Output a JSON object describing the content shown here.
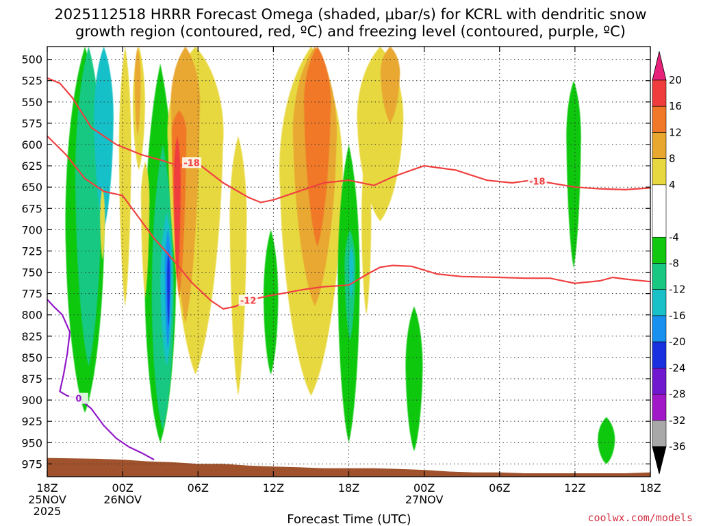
{
  "chart_data": {
    "type": "heatmap",
    "title_lines": [
      "2025112518 HRRR Forecast Omega (shaded, μbar/s) for KCRL with dendritic snow",
      "growth region (contoured, red, ºC) and freezing level (contoured, purple, ºC)"
    ],
    "xlabel": "Forecast Time (UTC)",
    "credit": "coolwx.com/models",
    "x_range": [
      0,
      48
    ],
    "y_range": [
      485,
      990
    ],
    "x_ticks": [
      {
        "x": 0,
        "lines": [
          "18Z",
          "25NOV",
          "2025"
        ]
      },
      {
        "x": 6,
        "lines": [
          "00Z",
          "26NOV"
        ]
      },
      {
        "x": 12,
        "lines": [
          "06Z"
        ]
      },
      {
        "x": 18,
        "lines": [
          "12Z"
        ]
      },
      {
        "x": 24,
        "lines": [
          "18Z"
        ]
      },
      {
        "x": 30,
        "lines": [
          "00Z",
          "27NOV"
        ]
      },
      {
        "x": 36,
        "lines": [
          "06Z"
        ]
      },
      {
        "x": 42,
        "lines": [
          "12Z"
        ]
      },
      {
        "x": 48,
        "lines": [
          "18Z"
        ]
      }
    ],
    "y_ticks": [
      "500",
      "525",
      "550",
      "575",
      "600",
      "625",
      "650",
      "675",
      "700",
      "725",
      "750",
      "775",
      "800",
      "825",
      "850",
      "875",
      "900",
      "925",
      "950",
      "975"
    ],
    "colorbar": {
      "labels": [
        "20",
        "16",
        "12",
        "8",
        "4",
        "-4",
        "-8",
        "-12",
        "-16",
        "-20",
        "-24",
        "-28",
        "-32",
        "-36"
      ],
      "levels": [
        {
          "from": 20,
          "to": 24,
          "color": "#e8227a"
        },
        {
          "from": 16,
          "to": 20,
          "color": "#f03c3c"
        },
        {
          "from": 12,
          "to": 16,
          "color": "#f07828"
        },
        {
          "from": 8,
          "to": 12,
          "color": "#e8a830"
        },
        {
          "from": 4,
          "to": 8,
          "color": "#e8d840"
        },
        {
          "from": -4,
          "to": 4,
          "color": "#ffffff"
        },
        {
          "from": -8,
          "to": -4,
          "color": "#10c810"
        },
        {
          "from": -12,
          "to": -8,
          "color": "#18c882"
        },
        {
          "from": -16,
          "to": -12,
          "color": "#18c0c8"
        },
        {
          "from": -20,
          "to": -16,
          "color": "#1890f0"
        },
        {
          "from": -24,
          "to": -20,
          "color": "#1830e0"
        },
        {
          "from": -28,
          "to": -24,
          "color": "#7018d0"
        },
        {
          "from": -32,
          "to": -28,
          "color": "#a018c8"
        },
        {
          "from": -36,
          "to": -32,
          "color": "#a8a8a8"
        },
        {
          "from": -40,
          "to": -36,
          "color": "#000000"
        }
      ]
    },
    "omega_features": [
      {
        "value": -6,
        "x": 3.0,
        "y": 720,
        "half_width": 1.6,
        "y_top": 485,
        "y_bottom": 915
      },
      {
        "value": -10,
        "x": 3.3,
        "y": 660,
        "half_width": 1.1,
        "y_top": 485,
        "y_bottom": 860
      },
      {
        "value": -14,
        "x": 4.5,
        "y": 580,
        "half_width": 0.8,
        "y_top": 485,
        "y_bottom": 700
      },
      {
        "value": 6,
        "x": 6.2,
        "y": 620,
        "half_width": 0.5,
        "y_top": 485,
        "y_bottom": 790
      },
      {
        "value": 6,
        "x": 4.4,
        "y": 690,
        "half_width": 0.2,
        "y_top": 650,
        "y_bottom": 735
      },
      {
        "value": -6,
        "x": 9.0,
        "y": 775,
        "half_width": 1.3,
        "y_top": 505,
        "y_bottom": 950
      },
      {
        "value": -10,
        "x": 9.2,
        "y": 800,
        "half_width": 0.9,
        "y_top": 600,
        "y_bottom": 935
      },
      {
        "value": -14,
        "x": 9.5,
        "y": 770,
        "half_width": 0.5,
        "y_top": 680,
        "y_bottom": 860
      },
      {
        "value": -18,
        "x": 9.6,
        "y": 755,
        "half_width": 0.25,
        "y_top": 700,
        "y_bottom": 840
      },
      {
        "value": -22,
        "x": 9.65,
        "y": 760,
        "half_width": 0.12,
        "y_top": 725,
        "y_bottom": 815
      },
      {
        "value": 6,
        "x": 11.8,
        "y": 600,
        "half_width": 2.3,
        "y_top": 485,
        "y_bottom": 870
      },
      {
        "value": 10,
        "x": 11.0,
        "y": 560,
        "half_width": 1.2,
        "y_top": 485,
        "y_bottom": 810
      },
      {
        "value": 14,
        "x": 10.5,
        "y": 590,
        "half_width": 0.6,
        "y_top": 560,
        "y_bottom": 780
      },
      {
        "value": 18,
        "x": 10.35,
        "y": 650,
        "half_width": 0.28,
        "y_top": 590,
        "y_bottom": 760
      },
      {
        "value": 6,
        "x": 7.3,
        "y": 560,
        "half_width": 0.5,
        "y_top": 485,
        "y_bottom": 630
      },
      {
        "value": 10,
        "x": 7.2,
        "y": 530,
        "half_width": 0.25,
        "y_top": 485,
        "y_bottom": 590
      },
      {
        "value": 6,
        "x": 7.8,
        "y": 670,
        "half_width": 0.35,
        "y_top": 620,
        "y_bottom": 780
      },
      {
        "value": 6,
        "x": 15.2,
        "y": 700,
        "half_width": 0.7,
        "y_top": 590,
        "y_bottom": 895
      },
      {
        "value": -6,
        "x": 17.8,
        "y": 790,
        "half_width": 0.6,
        "y_top": 700,
        "y_bottom": 870
      },
      {
        "value": 6,
        "x": 21.0,
        "y": 650,
        "half_width": 2.6,
        "y_top": 485,
        "y_bottom": 895
      },
      {
        "value": 10,
        "x": 21.3,
        "y": 600,
        "half_width": 1.8,
        "y_top": 485,
        "y_bottom": 790
      },
      {
        "value": 14,
        "x": 21.5,
        "y": 560,
        "half_width": 1.1,
        "y_top": 485,
        "y_bottom": 720
      },
      {
        "value": -6,
        "x": 24.0,
        "y": 780,
        "half_width": 0.9,
        "y_top": 600,
        "y_bottom": 950
      },
      {
        "value": -10,
        "x": 24.1,
        "y": 750,
        "half_width": 0.45,
        "y_top": 700,
        "y_bottom": 830
      },
      {
        "value": -14,
        "x": 24.2,
        "y": 745,
        "half_width": 0.2,
        "y_top": 720,
        "y_bottom": 780
      },
      {
        "value": 6,
        "x": 26.5,
        "y": 580,
        "half_width": 1.9,
        "y_top": 485,
        "y_bottom": 690
      },
      {
        "value": 10,
        "x": 27.3,
        "y": 520,
        "half_width": 0.8,
        "y_top": 485,
        "y_bottom": 575
      },
      {
        "value": 6,
        "x": 25.4,
        "y": 700,
        "half_width": 0.4,
        "y_top": 600,
        "y_bottom": 800
      },
      {
        "value": -6,
        "x": 29.2,
        "y": 870,
        "half_width": 0.7,
        "y_top": 790,
        "y_bottom": 960
      },
      {
        "value": -6,
        "x": 41.9,
        "y": 600,
        "half_width": 0.6,
        "y_top": 525,
        "y_bottom": 745
      },
      {
        "value": -6,
        "x": 44.5,
        "y": 950,
        "half_width": 0.7,
        "y_top": 920,
        "y_bottom": 975
      }
    ],
    "dgz_contours": [
      {
        "label": "-18",
        "label_x": [
          11.5,
          39.0
        ],
        "points": [
          [
            0,
            522
          ],
          [
            1.0,
            528
          ],
          [
            2.0,
            545
          ],
          [
            3.5,
            580
          ],
          [
            5.5,
            600
          ],
          [
            7.5,
            612
          ],
          [
            9.0,
            618
          ],
          [
            10.5,
            625
          ],
          [
            11.8,
            620
          ],
          [
            14.0,
            645
          ],
          [
            16.0,
            662
          ],
          [
            17.0,
            668
          ],
          [
            18.0,
            665
          ],
          [
            20.0,
            655
          ],
          [
            22.0,
            645
          ],
          [
            24.0,
            642
          ],
          [
            26.0,
            648
          ],
          [
            27.5,
            638
          ],
          [
            29.0,
            630
          ],
          [
            30.0,
            625
          ],
          [
            31.0,
            627
          ],
          [
            32.5,
            630
          ],
          [
            35.0,
            642
          ],
          [
            37.0,
            645
          ],
          [
            38.5,
            642
          ],
          [
            40.0,
            645
          ],
          [
            42.0,
            650
          ],
          [
            44.0,
            652
          ],
          [
            46.0,
            653
          ],
          [
            48.0,
            651
          ]
        ]
      },
      {
        "label": "-12",
        "label_x": [
          16.0
        ],
        "points": [
          [
            0,
            590
          ],
          [
            1.5,
            612
          ],
          [
            3.0,
            640
          ],
          [
            4.5,
            655
          ],
          [
            6.0,
            660
          ],
          [
            7.0,
            680
          ],
          [
            8.5,
            710
          ],
          [
            10.0,
            735
          ],
          [
            11.5,
            762
          ],
          [
            13.0,
            783
          ],
          [
            14.0,
            793
          ],
          [
            15.0,
            790
          ],
          [
            16.0,
            783
          ],
          [
            17.5,
            778
          ],
          [
            19.0,
            774
          ],
          [
            20.5,
            770
          ],
          [
            22.0,
            767
          ],
          [
            24.0,
            765
          ],
          [
            25.5,
            752
          ],
          [
            26.5,
            744
          ],
          [
            27.5,
            742
          ],
          [
            29.0,
            743
          ],
          [
            31.0,
            752
          ],
          [
            33.0,
            755
          ],
          [
            36.0,
            756
          ],
          [
            38.0,
            757
          ],
          [
            40.0,
            757
          ],
          [
            42.0,
            763
          ],
          [
            44.0,
            760
          ],
          [
            45.0,
            756
          ],
          [
            46.0,
            758
          ],
          [
            48.0,
            761
          ]
        ]
      }
    ],
    "freezing_contour": {
      "label": "0",
      "label_x": [
        2.5
      ],
      "points": [
        [
          0,
          782
        ],
        [
          0.5,
          790
        ],
        [
          1.2,
          800
        ],
        [
          1.8,
          820
        ],
        [
          1.6,
          845
        ],
        [
          1.3,
          870
        ],
        [
          1.0,
          890
        ],
        [
          1.6,
          895
        ],
        [
          2.5,
          898
        ],
        [
          3.5,
          910
        ],
        [
          4.5,
          930
        ],
        [
          5.5,
          945
        ],
        [
          6.5,
          955
        ],
        [
          7.5,
          962
        ],
        [
          8.5,
          970
        ]
      ]
    },
    "terrain": [
      [
        0,
        968
      ],
      [
        4.0,
        969
      ],
      [
        6.0,
        970
      ],
      [
        8.0,
        972
      ],
      [
        10.0,
        973
      ],
      [
        12.0,
        975
      ],
      [
        14.0,
        975
      ],
      [
        16.0,
        977
      ],
      [
        18.0,
        978
      ],
      [
        20.0,
        979
      ],
      [
        22.0,
        980
      ],
      [
        24.0,
        980
      ],
      [
        26.0,
        980
      ],
      [
        28.0,
        981
      ],
      [
        30.0,
        982
      ],
      [
        32.0,
        984
      ],
      [
        34.0,
        985
      ],
      [
        36.0,
        985
      ],
      [
        38.0,
        986
      ],
      [
        40.0,
        986
      ],
      [
        42.0,
        986
      ],
      [
        44.0,
        986
      ],
      [
        46.0,
        986
      ],
      [
        48.0,
        985
      ]
    ]
  }
}
